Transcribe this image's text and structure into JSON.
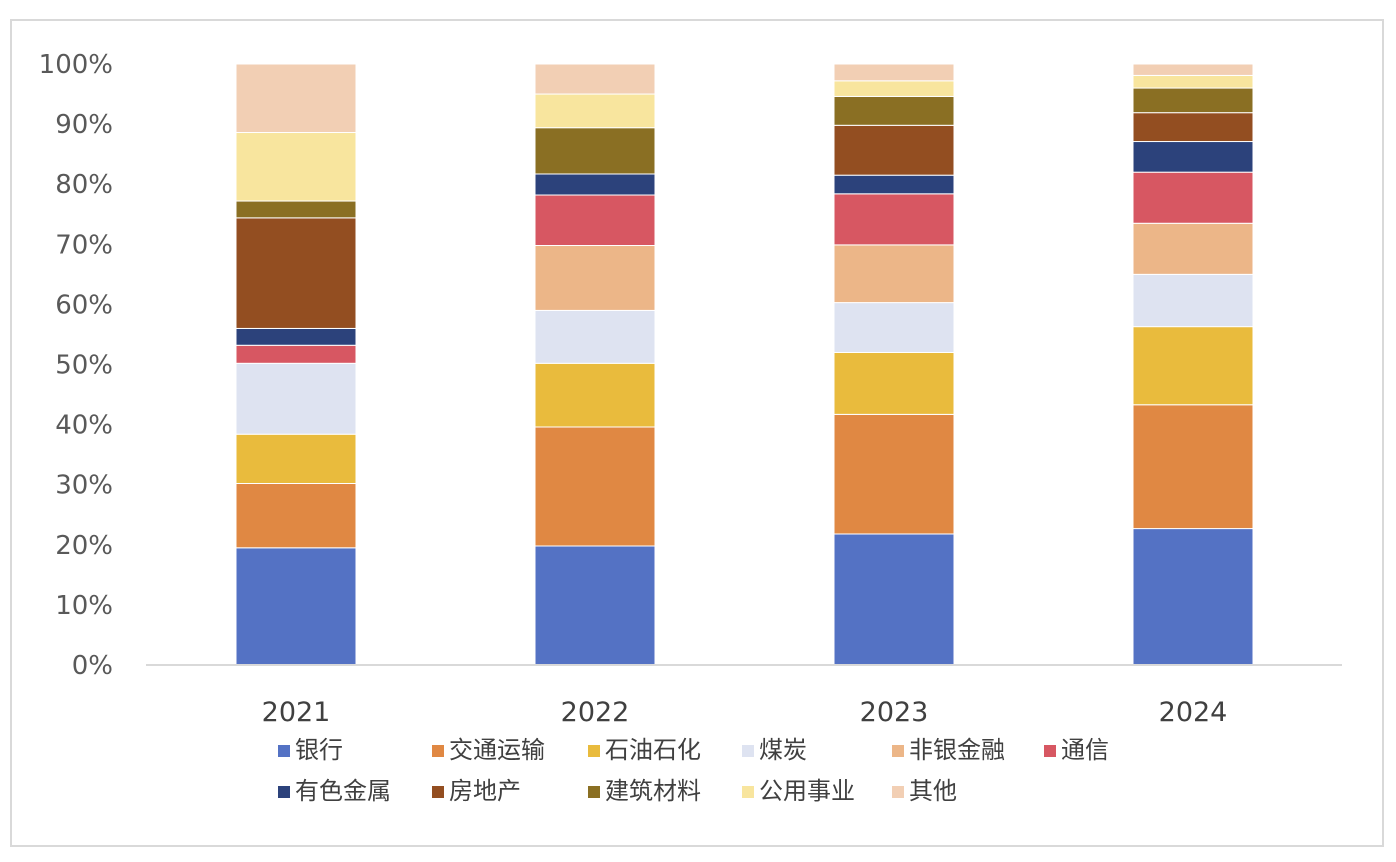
{
  "chart_data": {
    "type": "bar",
    "stacked": true,
    "normalized": true,
    "categories": [
      "2021",
      "2022",
      "2023",
      "2024"
    ],
    "ylim": [
      0,
      100
    ],
    "y_tick_labels": [
      "0%",
      "10%",
      "20%",
      "30%",
      "40%",
      "50%",
      "60%",
      "70%",
      "80%",
      "90%",
      "100%"
    ],
    "grid": false,
    "legend_position": "bottom",
    "series": [
      {
        "name": "银行",
        "color": "#5472c4",
        "values": [
          19.5,
          19.8,
          21.8,
          22.7
        ]
      },
      {
        "name": "交通运输",
        "color": "#e08843",
        "values": [
          10.7,
          19.8,
          19.9,
          20.6
        ]
      },
      {
        "name": "石油石化",
        "color": "#e9bb3d",
        "values": [
          8.2,
          10.6,
          10.3,
          13.0
        ]
      },
      {
        "name": "煤炭",
        "color": "#dee3f1",
        "values": [
          11.8,
          8.8,
          8.3,
          8.7
        ]
      },
      {
        "name": "非银金融",
        "color": "#ecb688",
        "values": [
          0,
          10.8,
          9.6,
          8.5
        ]
      },
      {
        "name": "通信",
        "color": "#d75762",
        "values": [
          3.0,
          8.4,
          8.5,
          8.5
        ]
      },
      {
        "name": "有色金属",
        "color": "#2c427b",
        "values": [
          2.8,
          3.5,
          3.1,
          5.1
        ]
      },
      {
        "name": "房地产",
        "color": "#934e21",
        "values": [
          18.4,
          0,
          8.3,
          4.8
        ]
      },
      {
        "name": "建筑材料",
        "color": "#8a6f23",
        "values": [
          2.8,
          7.7,
          4.8,
          4.1
        ]
      },
      {
        "name": "公用事业",
        "color": "#f8e59e",
        "values": [
          11.4,
          5.6,
          2.6,
          2.1
        ]
      },
      {
        "name": "其他",
        "color": "#f2cfb4",
        "values": [
          11.4,
          5.0,
          2.8,
          1.9
        ]
      }
    ]
  }
}
